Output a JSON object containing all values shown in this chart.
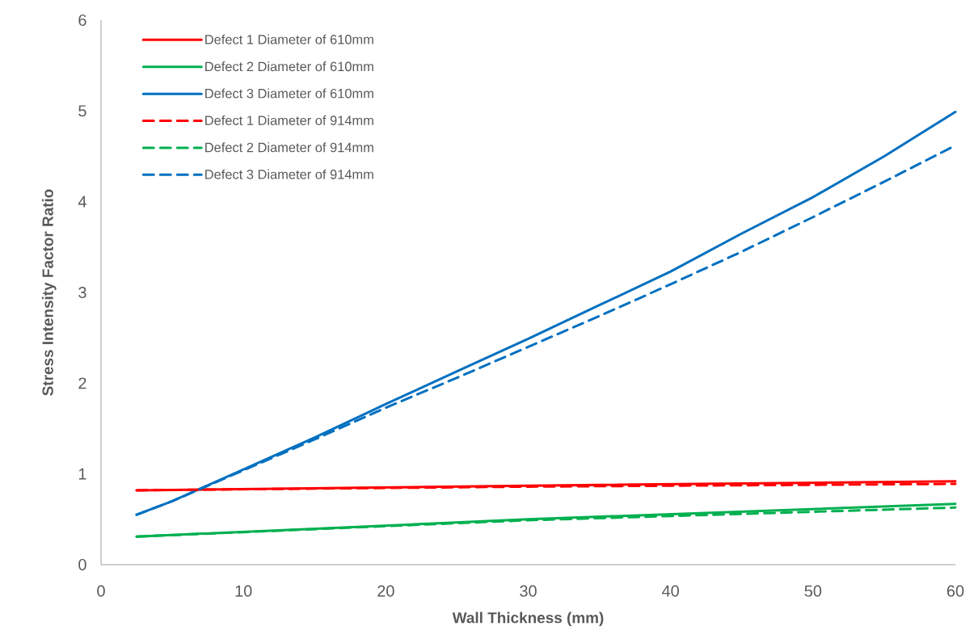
{
  "chart_data": {
    "type": "line",
    "xlabel": "Wall Thickness (mm)",
    "ylabel": "Stress Intensity Factor Ratio",
    "xlim": [
      0,
      60
    ],
    "xticks": [
      0,
      10,
      20,
      30,
      40,
      50,
      60
    ],
    "ylim": [
      0,
      6
    ],
    "yticks": [
      0,
      1,
      2,
      3,
      4,
      5,
      6
    ],
    "legend": "top left",
    "series": [
      {
        "name": "Defect 1 Diameter of 610mm",
        "color": "#ff0000",
        "line_style": "solid",
        "x": [
          2.5,
          30,
          60
        ],
        "values": [
          0.82,
          0.87,
          0.92
        ]
      },
      {
        "name": "Defect 2 Diameter of 610mm",
        "color": "#00b050",
        "line_style": "solid",
        "x": [
          2.5,
          30,
          60
        ],
        "values": [
          0.31,
          0.5,
          0.67
        ]
      },
      {
        "name": "Defect 3 Diameter of 610mm",
        "color": "#0070c0",
        "line_style": "solid",
        "x": [
          2.5,
          5,
          10,
          15,
          20,
          25,
          30,
          35,
          40,
          45,
          50,
          55,
          60
        ],
        "values": [
          0.55,
          0.7,
          1.05,
          1.4,
          1.77,
          2.13,
          2.49,
          2.86,
          3.23,
          3.65,
          4.05,
          4.5,
          4.99
        ]
      },
      {
        "name": "Defect 1 Diameter of 914mm",
        "color": "#ff0000",
        "line_style": "dashed",
        "x": [
          2.5,
          30,
          60
        ],
        "values": [
          0.82,
          0.86,
          0.89
        ]
      },
      {
        "name": "Defect 2 Diameter of 914mm",
        "color": "#00b050",
        "line_style": "dashed",
        "x": [
          2.5,
          30,
          60
        ],
        "values": [
          0.31,
          0.49,
          0.63
        ]
      },
      {
        "name": "Defect 3 Diameter of 914mm",
        "color": "#0070c0",
        "line_style": "dashed",
        "x": [
          2.5,
          5,
          10,
          15,
          20,
          25,
          30,
          35,
          40,
          45,
          50,
          55,
          60
        ],
        "values": [
          0.55,
          0.7,
          1.04,
          1.38,
          1.73,
          2.06,
          2.4,
          2.74,
          3.09,
          3.45,
          3.83,
          4.22,
          4.62
        ]
      }
    ]
  }
}
